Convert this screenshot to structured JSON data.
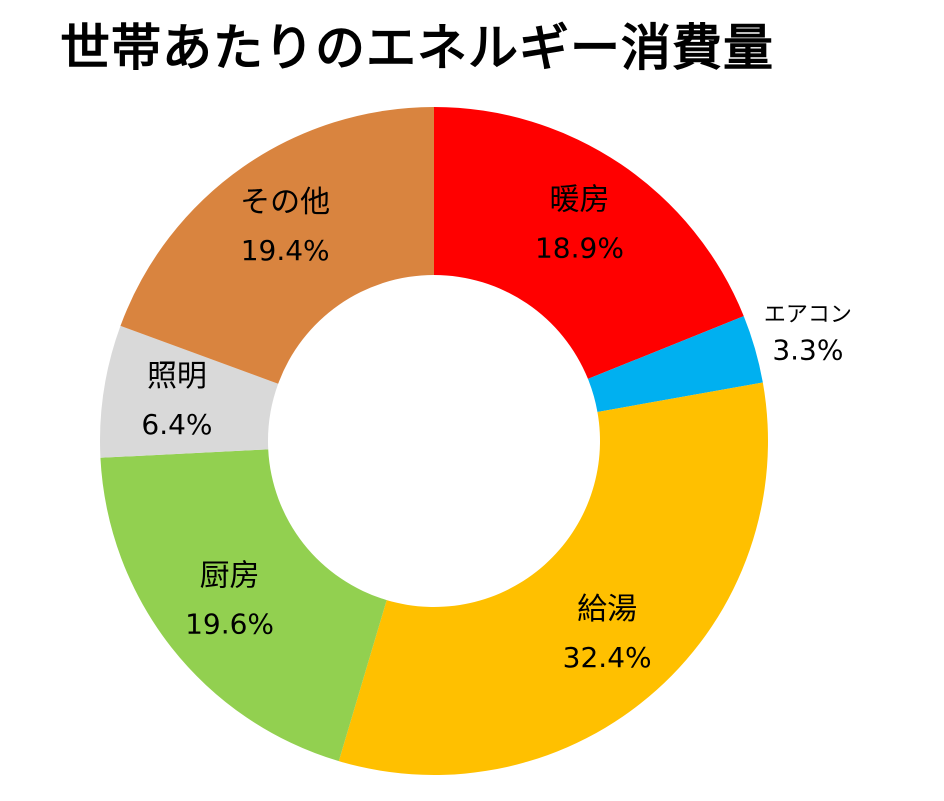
{
  "chart_data": {
    "type": "pie",
    "title": "世帯あたりのエネルギー消費量",
    "donut": true,
    "categories": [
      "暖房",
      "エアコン",
      "給湯",
      "厨房",
      "照明",
      "その他"
    ],
    "values": [
      18.9,
      3.3,
      32.4,
      19.6,
      6.4,
      19.4
    ],
    "labels": [
      "18.9%",
      "3.3%",
      "32.4%",
      "19.6%",
      "6.4%",
      "19.4%"
    ],
    "colors": [
      "#ff0000",
      "#00b0f0",
      "#ffc000",
      "#92d050",
      "#d9d9d9",
      "#d9843f"
    ],
    "start": "12 o'clock",
    "direction": "clockwise"
  }
}
